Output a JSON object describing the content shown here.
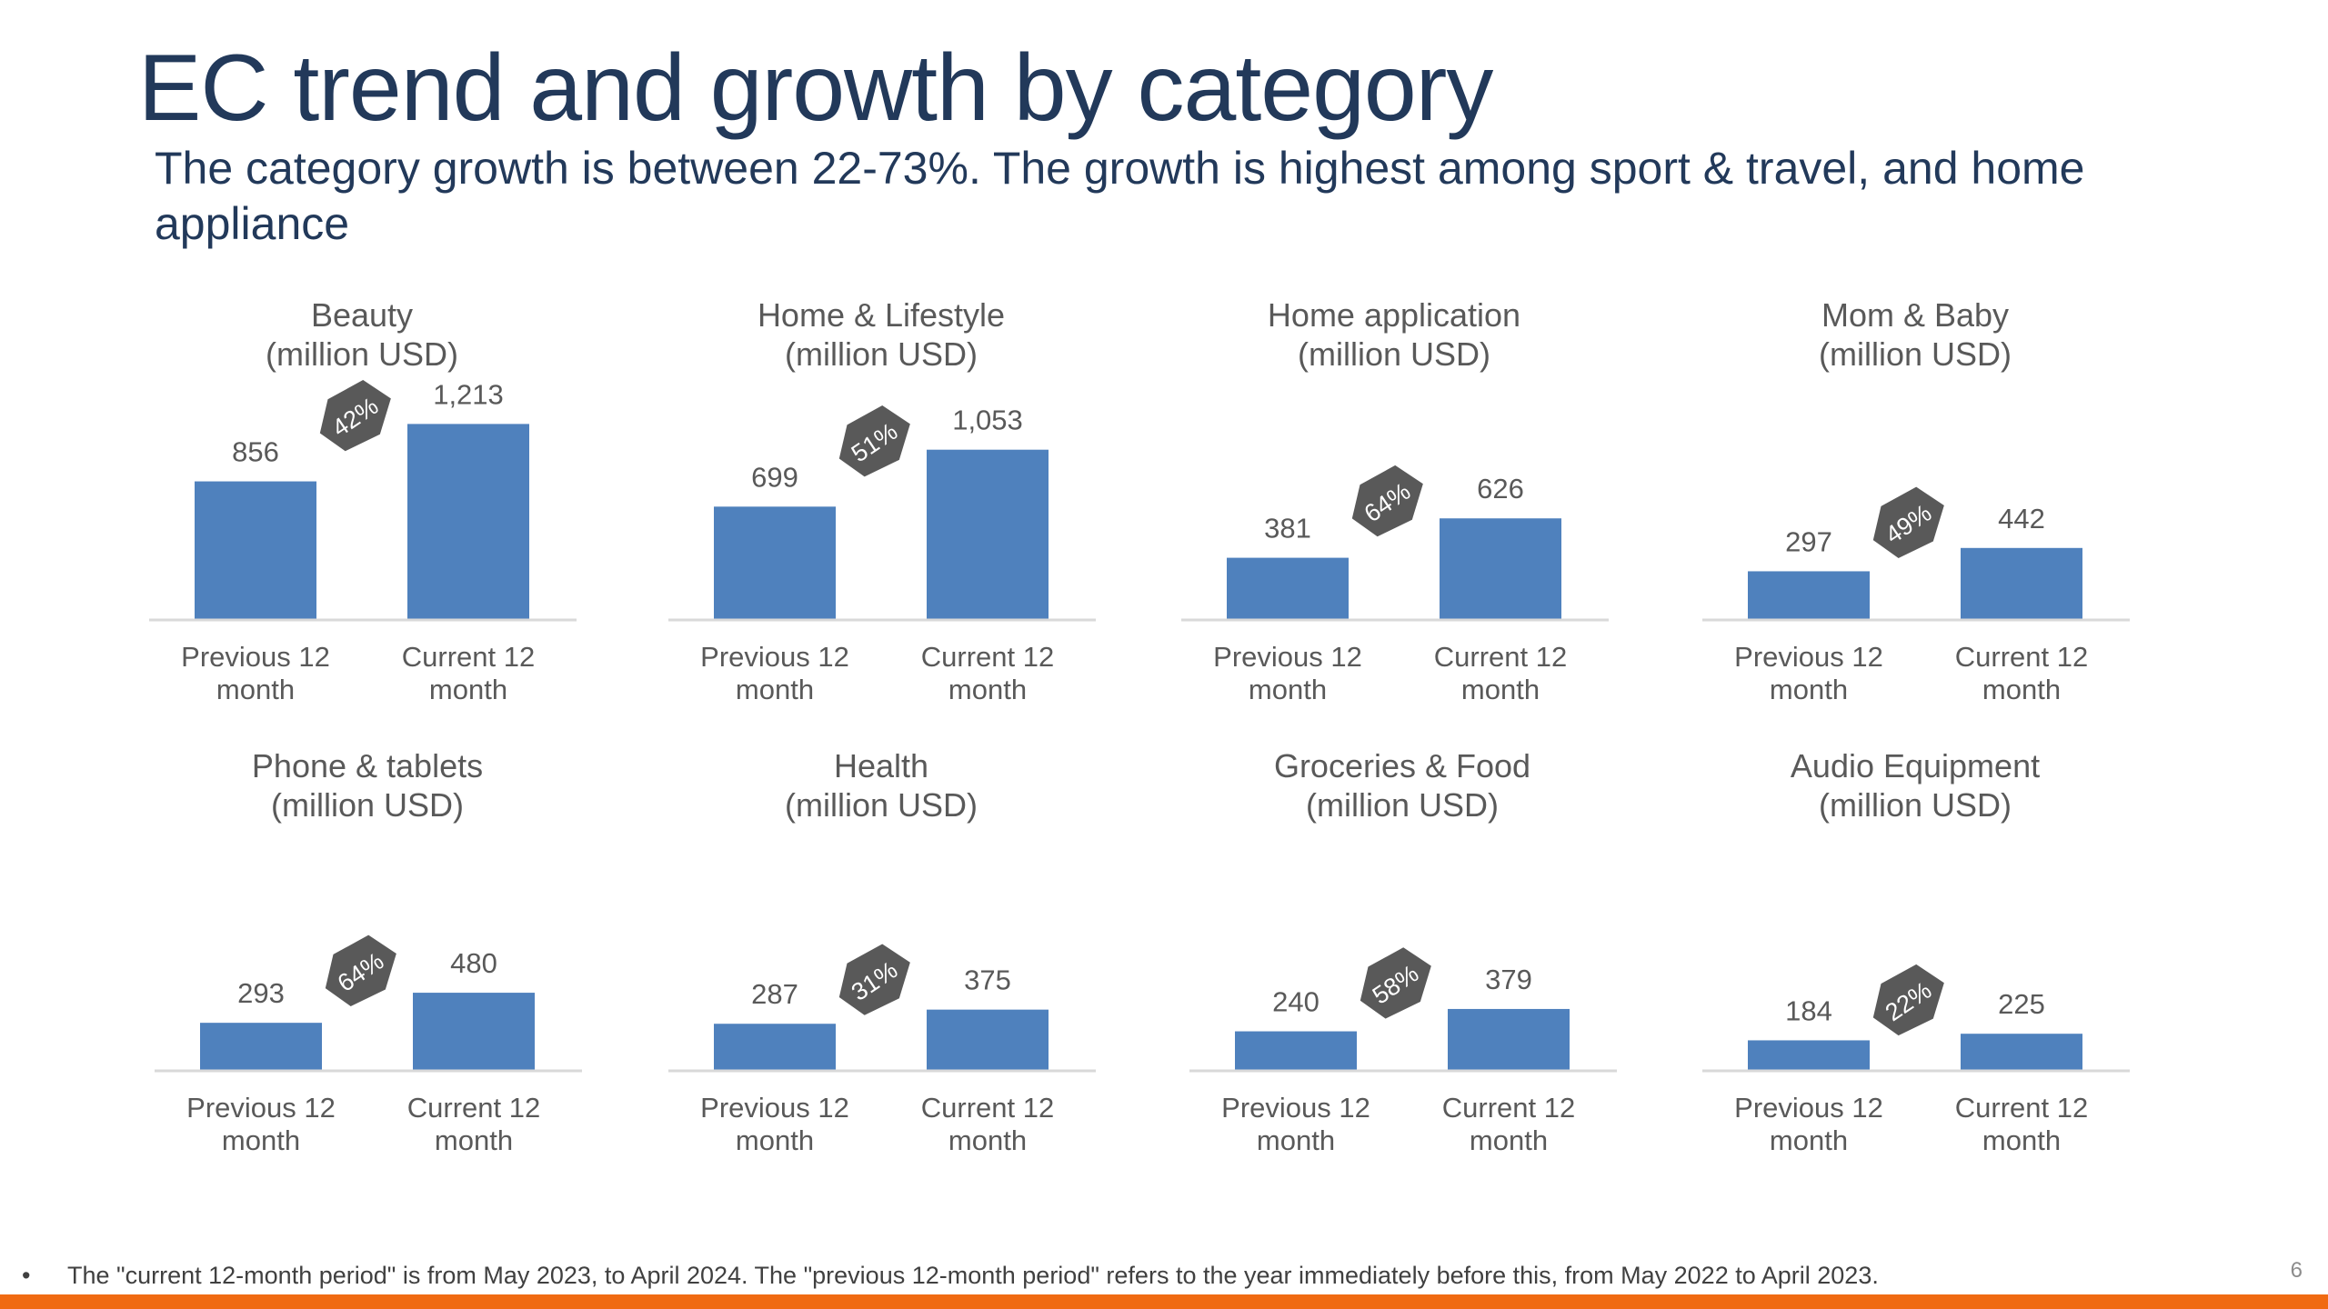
{
  "title": "EC trend and growth by category",
  "subtitle": "The category growth is between 22-73%. The growth is highest among sport & travel, and home appliance",
  "footnote": {
    "bullet": "•",
    "text": "The \"current 12-month period\" is from May 2023, to April 2024. The \"previous 12-month period\" refers to the year immediately before this, from May 2022 to April 2023."
  },
  "page_number": "6",
  "colors": {
    "bar": "#4f81bd",
    "badge": "#595959",
    "title": "#22395a",
    "axis": "#d9d9d9",
    "text": "#595959",
    "accent": "#f06a12"
  },
  "chart_data": [
    {
      "type": "bar",
      "title": "Beauty",
      "unit": "(million USD)",
      "categories": [
        "Previous 12 month",
        "Current 12 month"
      ],
      "values": [
        856,
        1213
      ],
      "value_labels": [
        "856",
        "1,213"
      ],
      "growth": "42%",
      "ylim": [
        0,
        1300
      ]
    },
    {
      "type": "bar",
      "title": "Home & Lifestyle",
      "unit": "(million USD)",
      "categories": [
        "Previous 12 month",
        "Current 12 month"
      ],
      "values": [
        699,
        1053
      ],
      "value_labels": [
        "699",
        "1,053"
      ],
      "growth": "51%",
      "ylim": [
        0,
        1300
      ]
    },
    {
      "type": "bar",
      "title": "Home application",
      "unit": "(million USD)",
      "categories": [
        "Previous 12 month",
        "Current 12 month"
      ],
      "values": [
        381,
        626
      ],
      "value_labels": [
        "381",
        "626"
      ],
      "growth": "64%",
      "ylim": [
        0,
        1300
      ]
    },
    {
      "type": "bar",
      "title": "Mom & Baby",
      "unit": "(million USD)",
      "categories": [
        "Previous 12 month",
        "Current 12 month"
      ],
      "values": [
        297,
        442
      ],
      "value_labels": [
        "297",
        "442"
      ],
      "growth": "49%",
      "ylim": [
        0,
        1300
      ]
    },
    {
      "type": "bar",
      "title": "Phone & tablets",
      "unit": "(million USD)",
      "categories": [
        "Previous 12 month",
        "Current 12 month"
      ],
      "values": [
        293,
        480
      ],
      "value_labels": [
        "293",
        "480"
      ],
      "growth": "64%",
      "ylim": [
        0,
        1300
      ]
    },
    {
      "type": "bar",
      "title": "Health",
      "unit": "(million USD)",
      "categories": [
        "Previous 12 month",
        "Current 12 month"
      ],
      "values": [
        287,
        375
      ],
      "value_labels": [
        "287",
        "375"
      ],
      "growth": "31%",
      "ylim": [
        0,
        1300
      ]
    },
    {
      "type": "bar",
      "title": "Groceries & Food",
      "unit": "(million USD)",
      "categories": [
        "Previous 12 month",
        "Current 12 month"
      ],
      "values": [
        240,
        379
      ],
      "value_labels": [
        "240",
        "379"
      ],
      "growth": "58%",
      "ylim": [
        0,
        1300
      ]
    },
    {
      "type": "bar",
      "title": "Audio Equipment",
      "unit": "(million USD)",
      "categories": [
        "Previous 12 month",
        "Current 12 month"
      ],
      "values": [
        184,
        225
      ],
      "value_labels": [
        "184",
        "225"
      ],
      "growth": "22%",
      "ylim": [
        0,
        1300
      ]
    }
  ]
}
